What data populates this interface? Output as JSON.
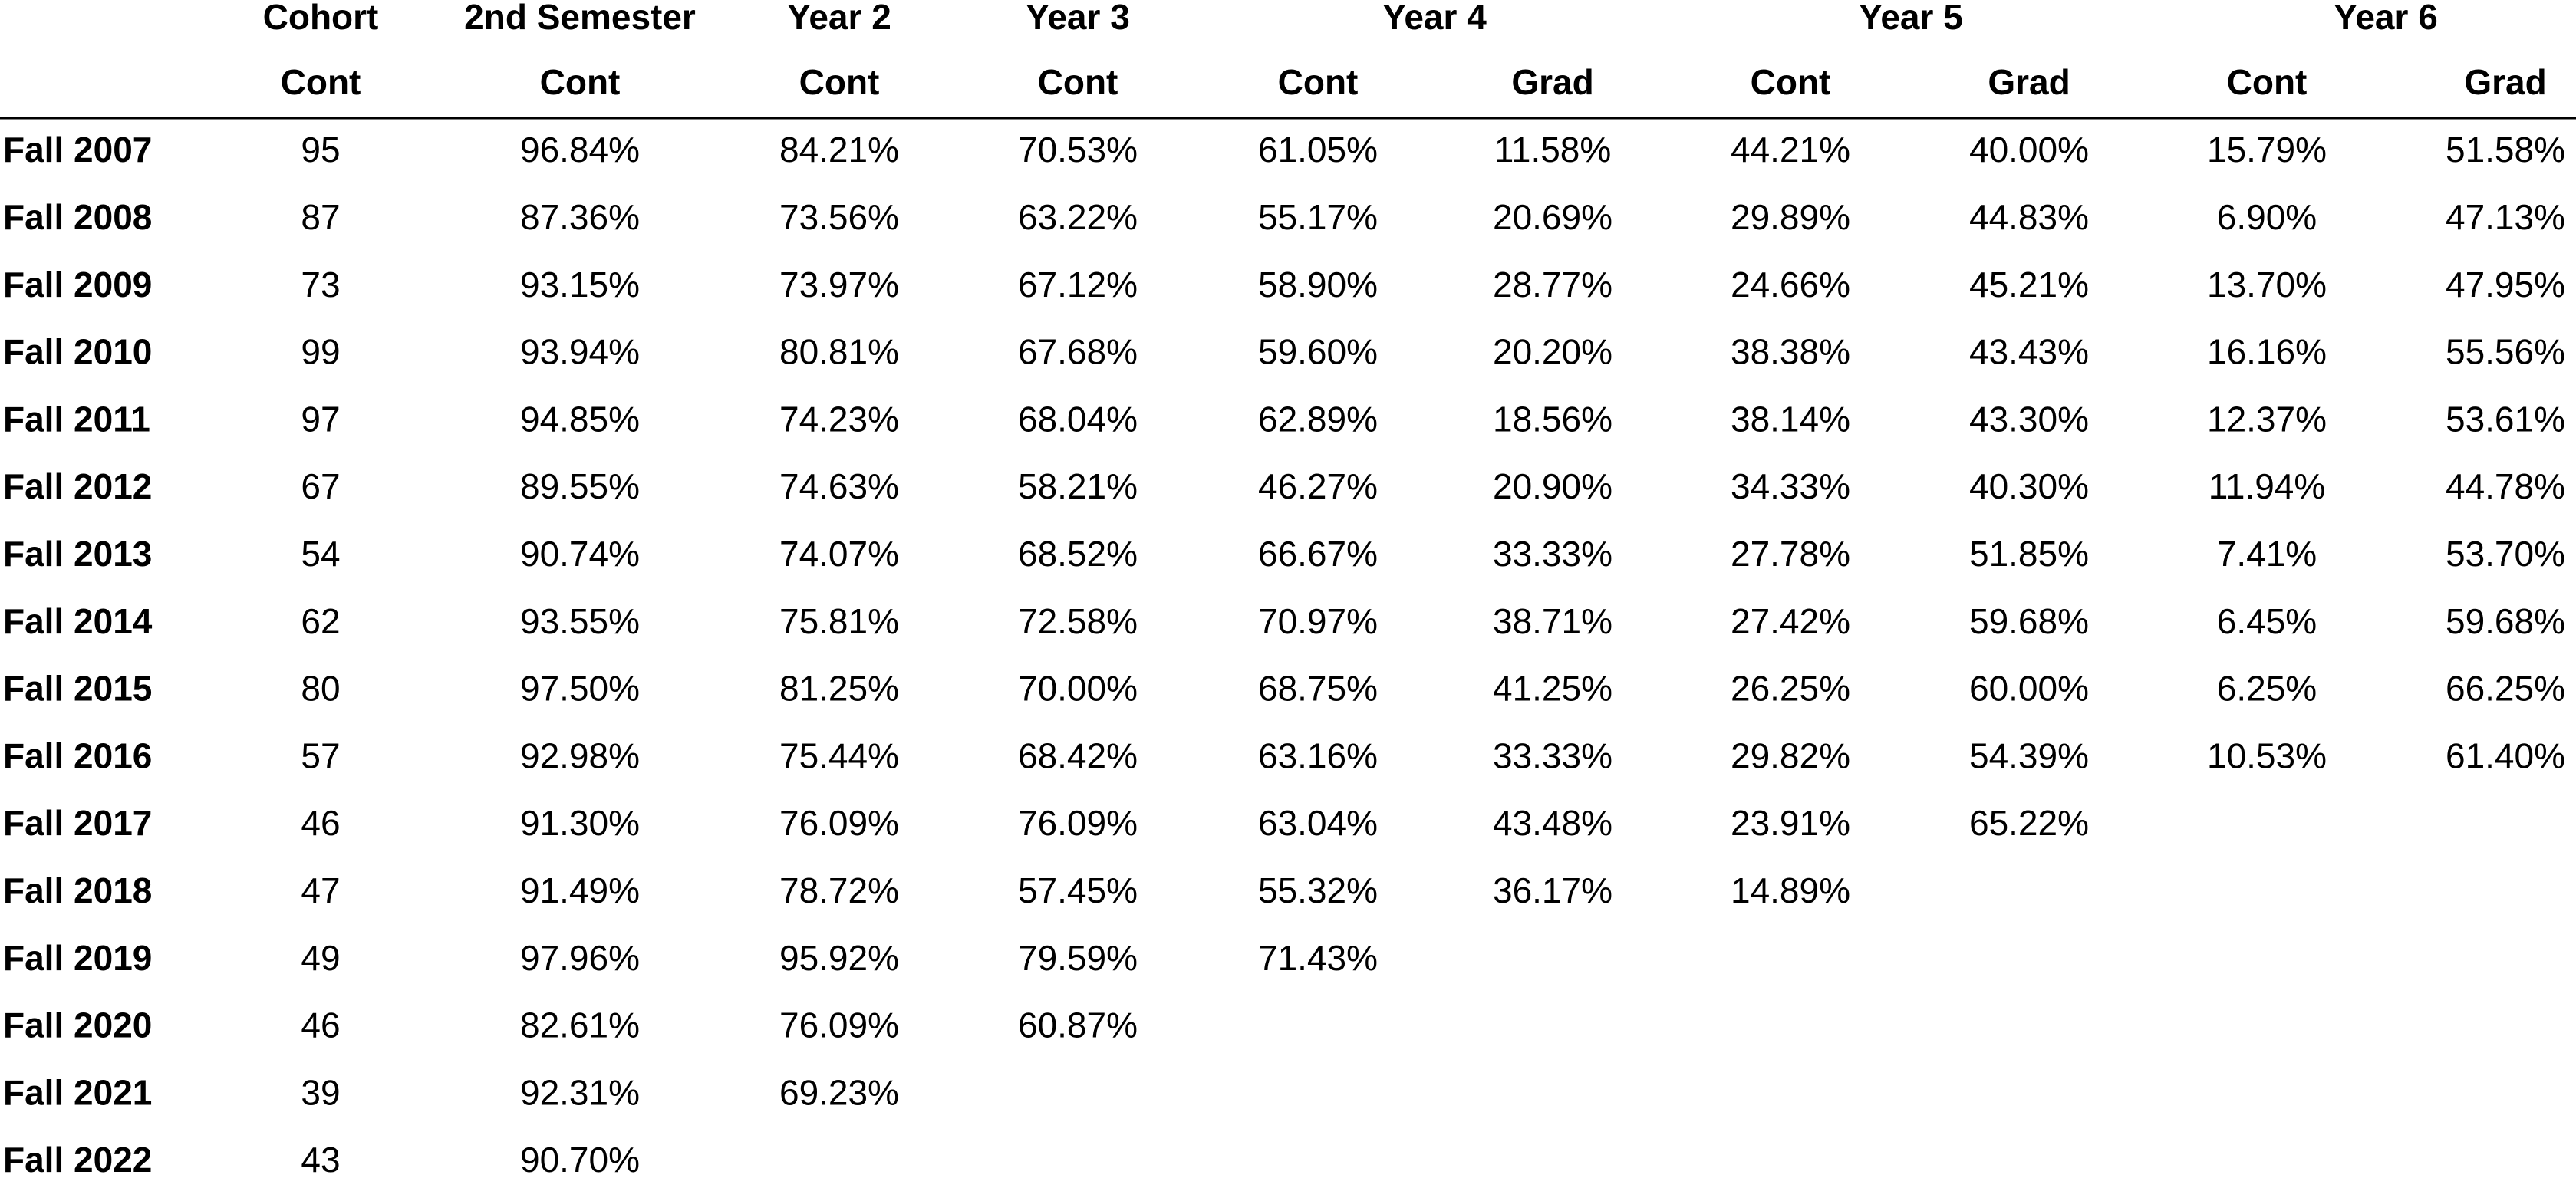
{
  "table": {
    "group_headers": [
      "Cohort",
      "2nd Semester",
      "Year 2",
      "Year 3",
      "Year 4",
      "Year 5",
      "Year 6"
    ],
    "sub_headers": [
      "Cont",
      "Cont",
      "Cont",
      "Cont",
      "Cont",
      "Grad",
      "Cont",
      "Grad",
      "Cont",
      "Grad"
    ],
    "rows": [
      [
        "Fall 2007",
        "95",
        "96.84%",
        "84.21%",
        "70.53%",
        "61.05%",
        "11.58%",
        "44.21%",
        "40.00%",
        "15.79%",
        "51.58%"
      ],
      [
        "Fall 2008",
        "87",
        "87.36%",
        "73.56%",
        "63.22%",
        "55.17%",
        "20.69%",
        "29.89%",
        "44.83%",
        "6.90%",
        "47.13%"
      ],
      [
        "Fall 2009",
        "73",
        "93.15%",
        "73.97%",
        "67.12%",
        "58.90%",
        "28.77%",
        "24.66%",
        "45.21%",
        "13.70%",
        "47.95%"
      ],
      [
        "Fall 2010",
        "99",
        "93.94%",
        "80.81%",
        "67.68%",
        "59.60%",
        "20.20%",
        "38.38%",
        "43.43%",
        "16.16%",
        "55.56%"
      ],
      [
        "Fall 2011",
        "97",
        "94.85%",
        "74.23%",
        "68.04%",
        "62.89%",
        "18.56%",
        "38.14%",
        "43.30%",
        "12.37%",
        "53.61%"
      ],
      [
        "Fall 2012",
        "67",
        "89.55%",
        "74.63%",
        "58.21%",
        "46.27%",
        "20.90%",
        "34.33%",
        "40.30%",
        "11.94%",
        "44.78%"
      ],
      [
        "Fall 2013",
        "54",
        "90.74%",
        "74.07%",
        "68.52%",
        "66.67%",
        "33.33%",
        "27.78%",
        "51.85%",
        "7.41%",
        "53.70%"
      ],
      [
        "Fall 2014",
        "62",
        "93.55%",
        "75.81%",
        "72.58%",
        "70.97%",
        "38.71%",
        "27.42%",
        "59.68%",
        "6.45%",
        "59.68%"
      ],
      [
        "Fall 2015",
        "80",
        "97.50%",
        "81.25%",
        "70.00%",
        "68.75%",
        "41.25%",
        "26.25%",
        "60.00%",
        "6.25%",
        "66.25%"
      ],
      [
        "Fall 2016",
        "57",
        "92.98%",
        "75.44%",
        "68.42%",
        "63.16%",
        "33.33%",
        "29.82%",
        "54.39%",
        "10.53%",
        "61.40%"
      ],
      [
        "Fall 2017",
        "46",
        "91.30%",
        "76.09%",
        "76.09%",
        "63.04%",
        "43.48%",
        "23.91%",
        "65.22%"
      ],
      [
        "Fall 2018",
        "47",
        "91.49%",
        "78.72%",
        "57.45%",
        "55.32%",
        "36.17%",
        "14.89%"
      ],
      [
        "Fall 2019",
        "49",
        "97.96%",
        "95.92%",
        "79.59%",
        "71.43%"
      ],
      [
        "Fall 2020",
        "46",
        "82.61%",
        "76.09%",
        "60.87%"
      ],
      [
        "Fall 2021",
        "39",
        "92.31%",
        "69.23%"
      ],
      [
        "Fall 2022",
        "43",
        "90.70%"
      ]
    ]
  }
}
